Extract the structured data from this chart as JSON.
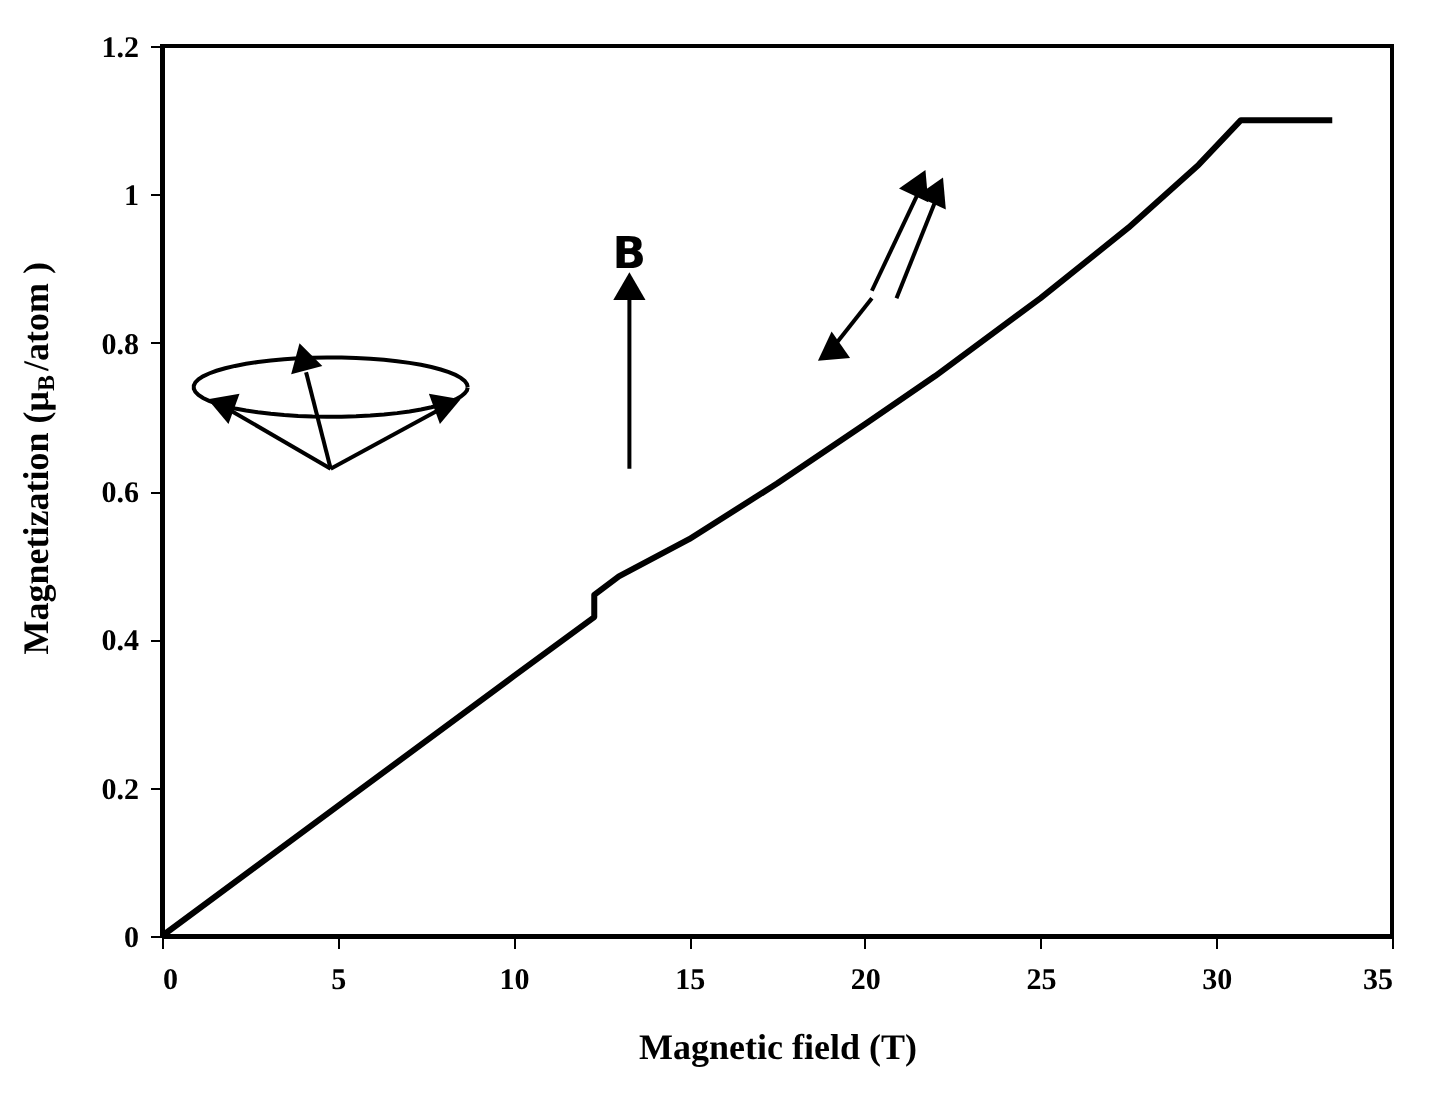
{
  "chart_data": {
    "type": "line",
    "xlabel": "Magnetic field (T)",
    "ylabel": "Magnetization (μ$_{B}$/atom )",
    "annotations": [
      "B"
    ],
    "series": [
      {
        "color": "#000000",
        "x": [
          0,
          5,
          10,
          12.3,
          12.3,
          13,
          15,
          17.5,
          20,
          22,
          25,
          27.5,
          29.5,
          30.7,
          33.3
        ],
        "values": [
          0,
          0.175,
          0.35,
          0.43,
          0.46,
          0.485,
          0.535,
          0.61,
          0.69,
          0.755,
          0.86,
          0.955,
          1.04,
          1.1,
          1.1
        ]
      }
    ],
    "xlim": [
      0,
      35
    ],
    "xticks": [
      0,
      5,
      10,
      15,
      20,
      25,
      30,
      35
    ],
    "ylim": [
      0,
      1.2
    ],
    "yticks": [
      0,
      0.2,
      0.4,
      0.6,
      0.8,
      1,
      1.2
    ],
    "grid": false,
    "marker": "none",
    "line_style": "solid"
  }
}
